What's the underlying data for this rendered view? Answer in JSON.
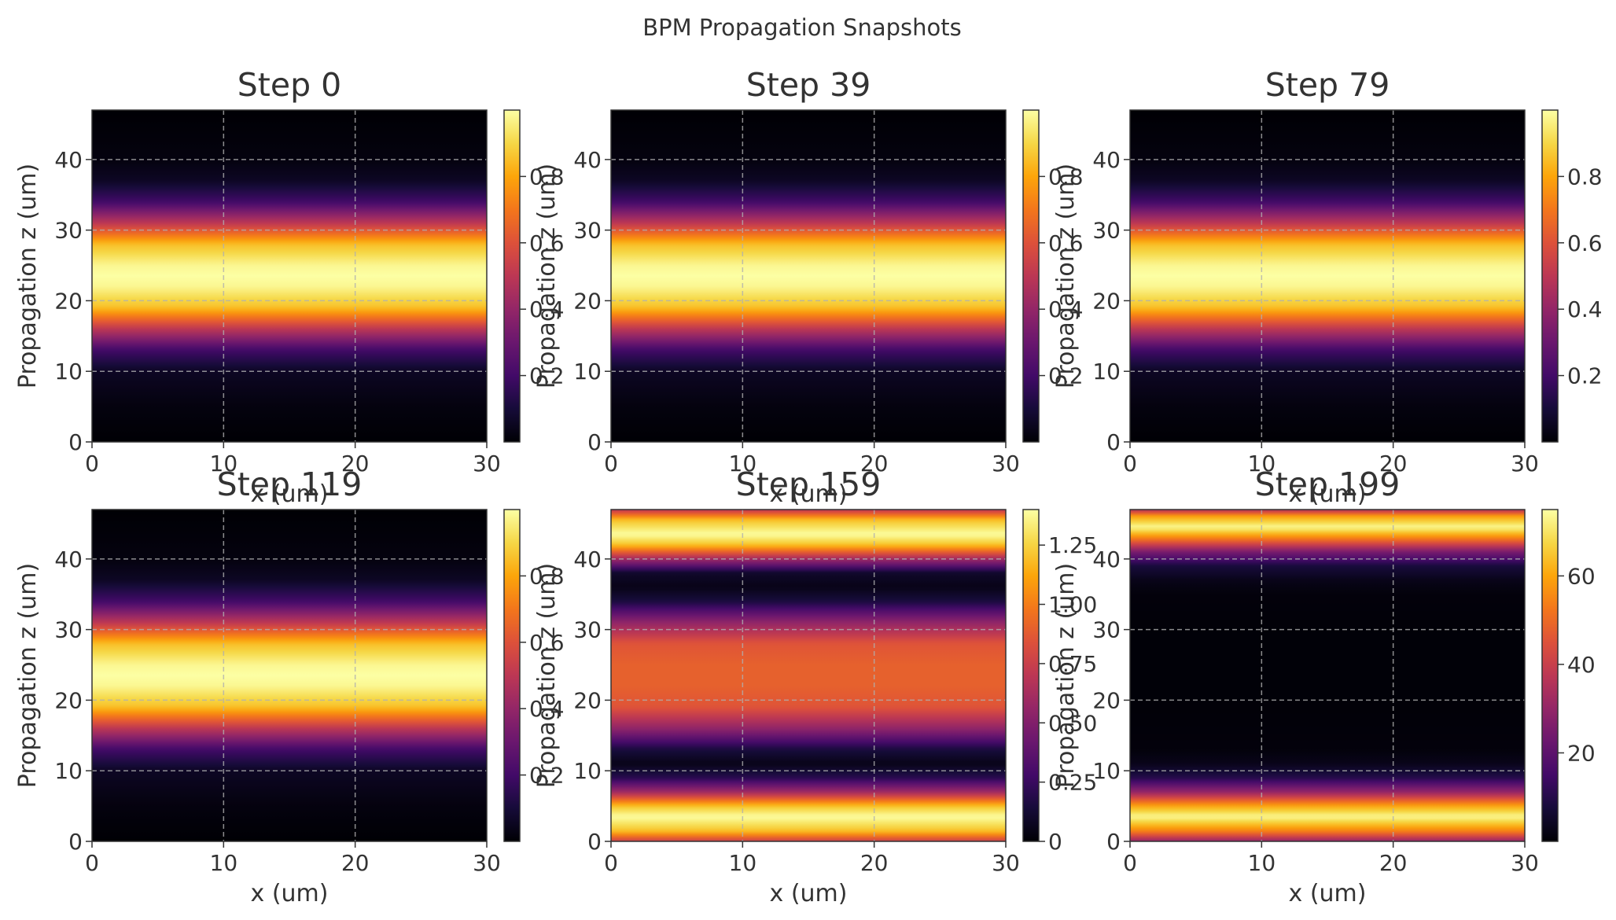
{
  "title": "BPM Propagation Snapshots",
  "chart_data": [
    {
      "type": "heatmap",
      "title": "Step 0",
      "xlabel": "x (um)",
      "ylabel": "Propagation z (um)",
      "xlim": [
        0,
        30
      ],
      "ylim": [
        0,
        47
      ],
      "xticks": [
        "0",
        "10",
        "20",
        "30"
      ],
      "yticks": [
        "0",
        "10",
        "20",
        "30",
        "40"
      ],
      "grid": true,
      "colormap": "inferno",
      "colorbar": {
        "min": 0,
        "max": 1.0,
        "ticks": [
          "0.2",
          "0.4",
          "0.6",
          "0.8"
        ]
      },
      "profile_z": [
        0,
        5,
        10,
        13,
        16,
        19,
        22,
        23.5,
        25,
        28,
        31,
        34,
        37,
        40,
        47
      ],
      "profile_values": [
        0.0,
        0.02,
        0.06,
        0.2,
        0.5,
        0.85,
        0.98,
        1.0,
        0.98,
        0.85,
        0.5,
        0.2,
        0.06,
        0.02,
        0.0
      ]
    },
    {
      "type": "heatmap",
      "title": "Step 39",
      "xlabel": "x (um)",
      "ylabel": "Propagation z (um)",
      "xlim": [
        0,
        30
      ],
      "ylim": [
        0,
        47
      ],
      "xticks": [
        "0",
        "10",
        "20",
        "30"
      ],
      "yticks": [
        "0",
        "10",
        "20",
        "30",
        "40"
      ],
      "grid": true,
      "colormap": "inferno",
      "colorbar": {
        "min": 0,
        "max": 1.0,
        "ticks": [
          "0.2",
          "0.4",
          "0.6",
          "0.8"
        ]
      },
      "profile_z": [
        0,
        5,
        10,
        13,
        16,
        19,
        22,
        23.5,
        25,
        28,
        31,
        34,
        37,
        40,
        47
      ],
      "profile_values": [
        0.0,
        0.02,
        0.06,
        0.2,
        0.5,
        0.85,
        0.98,
        1.0,
        0.98,
        0.85,
        0.5,
        0.2,
        0.06,
        0.02,
        0.0
      ]
    },
    {
      "type": "heatmap",
      "title": "Step 79",
      "xlabel": "x (um)",
      "ylabel": "Propagation z (um)",
      "xlim": [
        0,
        30
      ],
      "ylim": [
        0,
        47
      ],
      "xticks": [
        "0",
        "10",
        "20",
        "30"
      ],
      "yticks": [
        "0",
        "10",
        "20",
        "30",
        "40"
      ],
      "grid": true,
      "colormap": "inferno",
      "colorbar": {
        "min": 0,
        "max": 1.0,
        "ticks": [
          "0.2",
          "0.4",
          "0.6",
          "0.8"
        ]
      },
      "profile_z": [
        0,
        5,
        10,
        13,
        16,
        19,
        22,
        23.5,
        25,
        28,
        31,
        34,
        37,
        40,
        47
      ],
      "profile_values": [
        0.0,
        0.02,
        0.06,
        0.2,
        0.5,
        0.85,
        0.98,
        1.0,
        0.98,
        0.85,
        0.5,
        0.2,
        0.06,
        0.02,
        0.0
      ]
    },
    {
      "type": "heatmap",
      "title": "Step 119",
      "xlabel": "x (um)",
      "ylabel": "Propagation z (um)",
      "xlim": [
        0,
        30
      ],
      "ylim": [
        0,
        47
      ],
      "xticks": [
        "0",
        "10",
        "20",
        "30"
      ],
      "yticks": [
        "0",
        "10",
        "20",
        "30",
        "40"
      ],
      "grid": true,
      "colormap": "inferno",
      "colorbar": {
        "min": 0,
        "max": 1.0,
        "ticks": [
          "0.2",
          "0.4",
          "0.6",
          "0.8"
        ]
      },
      "profile_z": [
        0,
        5,
        10,
        13,
        16,
        19,
        22,
        23.5,
        25,
        28,
        31,
        34,
        37,
        40,
        47
      ],
      "profile_values": [
        0.0,
        0.02,
        0.06,
        0.2,
        0.5,
        0.85,
        0.98,
        1.0,
        0.98,
        0.85,
        0.5,
        0.2,
        0.06,
        0.02,
        0.0
      ]
    },
    {
      "type": "heatmap",
      "title": "Step 159",
      "xlabel": "x (um)",
      "ylabel": "Propagation z (um)",
      "xlim": [
        0,
        30
      ],
      "ylim": [
        0,
        47
      ],
      "xticks": [
        "0",
        "10",
        "20",
        "30"
      ],
      "yticks": [
        "0",
        "10",
        "20",
        "30",
        "40"
      ],
      "grid": true,
      "colormap": "inferno",
      "colorbar": {
        "min": 0,
        "max": 1.4,
        "ticks": [
          "0",
          "0.25",
          "0.50",
          "0.75",
          "1.00",
          "1.25"
        ]
      },
      "profile_z": [
        0,
        1.5,
        3.5,
        5,
        7,
        9,
        11,
        13,
        16,
        19,
        22,
        25,
        28,
        31,
        34,
        36,
        38,
        40,
        42,
        43.5,
        45.5,
        47
      ],
      "profile_values": [
        0.75,
        1.2,
        1.4,
        1.2,
        0.6,
        0.2,
        0.05,
        0.15,
        0.55,
        0.85,
        0.9,
        0.9,
        0.85,
        0.55,
        0.15,
        0.05,
        0.1,
        0.6,
        1.2,
        1.4,
        1.2,
        0.7
      ]
    },
    {
      "type": "heatmap",
      "title": "Step 199",
      "xlabel": "x (um)",
      "ylabel": "Propagation z (um)",
      "xlim": [
        0,
        30
      ],
      "ylim": [
        0,
        47
      ],
      "xticks": [
        "0",
        "10",
        "20",
        "30"
      ],
      "yticks": [
        "0",
        "10",
        "20",
        "30",
        "40"
      ],
      "grid": true,
      "colormap": "inferno",
      "colorbar": {
        "min": 0,
        "max": 75,
        "ticks": [
          "20",
          "40",
          "60"
        ]
      },
      "profile_z": [
        0,
        1.5,
        3.5,
        5,
        7,
        9,
        11,
        13,
        20,
        30,
        35,
        37,
        39,
        41,
        43,
        44.5,
        46,
        47
      ],
      "profile_values": [
        30,
        55,
        74,
        60,
        30,
        10,
        3,
        1,
        0.5,
        0.5,
        1,
        3,
        8,
        25,
        55,
        74,
        60,
        35
      ]
    }
  ]
}
